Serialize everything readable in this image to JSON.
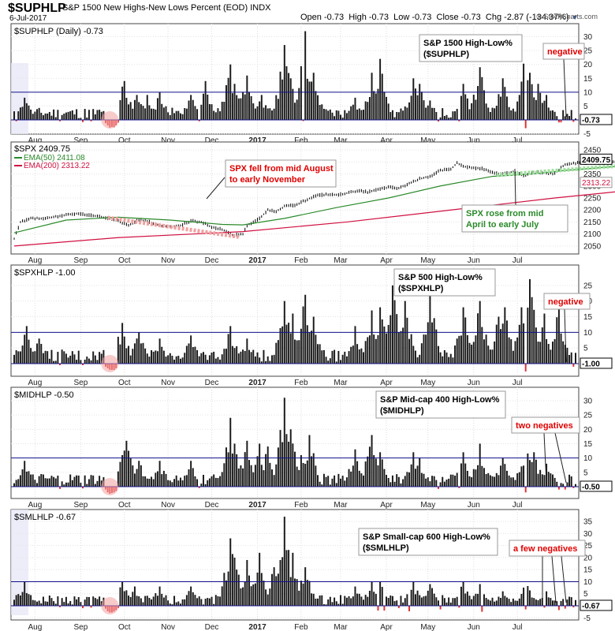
{
  "header": {
    "symbol": "$SUPHLP",
    "description": "S&P 1500 New Highs-New Lows Percent (EOD)",
    "exchange": "INDX",
    "date": "6-Jul-2017",
    "open_label": "Open",
    "open": "-0.73",
    "high_label": "High",
    "high": "-0.73",
    "low_label": "Low",
    "low": "-0.73",
    "close_label": "Close",
    "close": "-0.73",
    "chg_label": "Chg",
    "chg": "-2.87 (-134.37%)",
    "credit": "© StockCharts.com"
  },
  "colors": {
    "bar": "#1a1a1a",
    "neg": "#e03030",
    "ref": "#10108a",
    "ema50": "#2a8a2a",
    "ema200": "#d01040",
    "price": "#000000",
    "redNote": "#e00000",
    "greenNote": "#2a8a2a"
  },
  "chart_data": [
    {
      "type": "bar",
      "id": "suphlp",
      "legend": "$SUPHLP (Daily) -0.73",
      "yticks": [
        -5,
        0,
        5,
        10,
        15,
        20,
        25,
        30
      ],
      "ylim": [
        -6,
        33
      ],
      "ref_line": 10,
      "last_value": "-0.73",
      "x_labels": [
        "Aug",
        "Sep",
        "Oct",
        "Nov",
        "Dec",
        "2017",
        "Feb",
        "Mar",
        "Apr",
        "May",
        "Jun",
        "Jul"
      ],
      "spikes": [
        [
          5,
          8
        ],
        [
          52,
          12
        ],
        [
          53,
          14
        ],
        [
          59,
          9
        ],
        [
          64,
          9
        ],
        [
          70,
          10
        ],
        [
          85,
          9
        ],
        [
          92,
          14
        ],
        [
          104,
          20
        ],
        [
          106,
          13
        ],
        [
          112,
          16
        ],
        [
          119,
          9
        ],
        [
          130,
          27
        ],
        [
          133,
          15
        ],
        [
          140,
          32
        ],
        [
          144,
          17
        ],
        [
          164,
          8
        ],
        [
          172,
          17
        ],
        [
          176,
          22
        ],
        [
          192,
          15
        ],
        [
          195,
          13
        ],
        [
          200,
          7
        ],
        [
          216,
          13
        ],
        [
          224,
          19
        ],
        [
          235,
          15
        ],
        [
          246,
          26
        ],
        [
          248,
          17
        ],
        [
          252,
          13
        ],
        [
          256,
          9
        ]
      ],
      "neg_bars": [
        [
          1,
          -0.5
        ],
        [
          22,
          -0.5
        ],
        [
          33,
          -0.8
        ],
        [
          37,
          -0.5
        ],
        [
          44,
          -1.2
        ],
        [
          45,
          -2
        ],
        [
          46,
          -2.8
        ],
        [
          47,
          -2.5
        ],
        [
          48,
          -2.7
        ],
        [
          49,
          -2
        ],
        [
          50,
          -1
        ],
        [
          89,
          -0.5
        ],
        [
          139,
          -0.4
        ],
        [
          204,
          -0.6
        ],
        [
          214,
          -0.5
        ],
        [
          246,
          -3
        ],
        [
          262,
          -0.9
        ],
        [
          263,
          -0.9
        ],
        [
          269,
          -0.73
        ]
      ],
      "annotations": [
        {
          "text": "S&P 1500 High-Low%",
          "text2": "($SUPHLP)",
          "color": "#000000"
        },
        {
          "text": "negative",
          "color": "#e00000"
        }
      ]
    },
    {
      "type": "line",
      "id": "spx",
      "legend": "$SPX 2409.75",
      "ema50_label": "EMA(50) 2411.08",
      "ema200_label": "EMA(200) 2313.22",
      "yticks": [
        2050,
        2100,
        2150,
        2200,
        2250,
        2300,
        2350,
        2400,
        2450
      ],
      "ylim": [
        2030,
        2470
      ],
      "last_value": "2409.75",
      "ema200_value": "2313.22",
      "x_labels": [
        "Aug",
        "Sep",
        "Oct",
        "Nov",
        "Dec",
        "2017",
        "Feb",
        "Mar",
        "Apr",
        "May",
        "Jun",
        "Jul"
      ],
      "price_points": [
        [
          0,
          2080
        ],
        [
          3,
          2150
        ],
        [
          8,
          2165
        ],
        [
          15,
          2165
        ],
        [
          22,
          2175
        ],
        [
          30,
          2185
        ],
        [
          38,
          2178
        ],
        [
          45,
          2165
        ],
        [
          50,
          2155
        ],
        [
          55,
          2135
        ],
        [
          60,
          2160
        ],
        [
          65,
          2150
        ],
        [
          70,
          2135
        ],
        [
          75,
          2130
        ],
        [
          80,
          2135
        ],
        [
          85,
          2155
        ],
        [
          90,
          2150
        ],
        [
          95,
          2128
        ],
        [
          100,
          2120
        ],
        [
          105,
          2095
        ],
        [
          110,
          2100
        ],
        [
          112,
          2135
        ],
        [
          118,
          2165
        ],
        [
          122,
          2200
        ],
        [
          126,
          2195
        ],
        [
          130,
          2215
        ],
        [
          135,
          2220
        ],
        [
          140,
          2240
        ],
        [
          145,
          2260
        ],
        [
          150,
          2265
        ],
        [
          155,
          2262
        ],
        [
          160,
          2270
        ],
        [
          165,
          2280
        ],
        [
          170,
          2275
        ],
        [
          175,
          2285
        ],
        [
          180,
          2295
        ],
        [
          185,
          2290
        ],
        [
          190,
          2310
        ],
        [
          195,
          2330
        ],
        [
          200,
          2340
        ],
        [
          205,
          2365
        ],
        [
          210,
          2370
        ],
        [
          213,
          2395
        ],
        [
          216,
          2382
        ],
        [
          220,
          2375
        ],
        [
          225,
          2372
        ],
        [
          230,
          2355
        ],
        [
          235,
          2350
        ],
        [
          240,
          2360
        ],
        [
          245,
          2345
        ],
        [
          250,
          2358
        ],
        [
          255,
          2355
        ],
        [
          260,
          2352
        ],
        [
          265,
          2390
        ],
        [
          270,
          2395
        ],
        [
          275,
          2398
        ],
        [
          280,
          2400
        ],
        [
          285,
          2395
        ],
        [
          290,
          2400
        ],
        [
          295,
          2410
        ],
        [
          300,
          2425
        ],
        [
          305,
          2430
        ],
        [
          310,
          2440
        ],
        [
          315,
          2435
        ],
        [
          320,
          2440
        ],
        [
          324,
          2445
        ],
        [
          328,
          2430
        ],
        [
          332,
          2430
        ],
        [
          335,
          2428
        ]
      ],
      "ema50_points": [
        [
          0,
          2105
        ],
        [
          25,
          2158
        ],
        [
          50,
          2170
        ],
        [
          75,
          2158
        ],
        [
          100,
          2140
        ],
        [
          110,
          2138
        ],
        [
          130,
          2165
        ],
        [
          155,
          2210
        ],
        [
          180,
          2250
        ],
        [
          205,
          2300
        ],
        [
          230,
          2340
        ],
        [
          250,
          2350
        ],
        [
          265,
          2365
        ],
        [
          285,
          2378
        ],
        [
          305,
          2395
        ],
        [
          325,
          2411
        ],
        [
          335,
          2411
        ]
      ],
      "ema200_points": [
        [
          0,
          2050
        ],
        [
          50,
          2085
        ],
        [
          110,
          2110
        ],
        [
          160,
          2150
        ],
        [
          210,
          2200
        ],
        [
          260,
          2250
        ],
        [
          300,
          2285
        ],
        [
          335,
          2313
        ]
      ],
      "annotations": [
        {
          "text": "SPX fell from mid August",
          "text2": "to early November",
          "color": "#e00000"
        },
        {
          "text": "SPX rose from mid",
          "text2": "April to early July",
          "color": "#2a8a2a"
        }
      ]
    },
    {
      "type": "bar",
      "id": "spxhlp",
      "legend": "$SPXHLP -1.00",
      "yticks": [
        -5,
        0,
        5,
        10,
        15,
        20,
        25
      ],
      "ylim": [
        -6,
        30
      ],
      "ref_line": 10,
      "last_value": "-1.00",
      "x_labels": [
        "Aug",
        "Sep",
        "Oct",
        "Nov",
        "Dec",
        "2017",
        "Feb",
        "Mar",
        "Apr",
        "May",
        "Jun",
        "Jul"
      ],
      "spikes": [
        [
          6,
          12
        ],
        [
          12,
          8
        ],
        [
          45,
          9
        ],
        [
          52,
          13
        ],
        [
          60,
          10
        ],
        [
          70,
          8
        ],
        [
          85,
          9
        ],
        [
          104,
          12
        ],
        [
          112,
          8
        ],
        [
          130,
          20
        ],
        [
          134,
          16
        ],
        [
          140,
          22
        ],
        [
          144,
          15
        ],
        [
          164,
          12
        ],
        [
          172,
          17
        ],
        [
          176,
          18
        ],
        [
          182,
          25
        ],
        [
          188,
          20
        ],
        [
          200,
          22
        ],
        [
          216,
          18
        ],
        [
          224,
          20
        ],
        [
          233,
          15
        ],
        [
          236,
          18
        ],
        [
          244,
          18
        ],
        [
          248,
          27
        ],
        [
          255,
          16
        ],
        [
          262,
          18
        ]
      ],
      "neg_bars": [
        [
          44,
          -1
        ],
        [
          45,
          -1.5
        ],
        [
          46,
          -2
        ],
        [
          47,
          -2
        ],
        [
          48,
          -2
        ],
        [
          49,
          -1.5
        ],
        [
          22,
          -0.5
        ],
        [
          33,
          -0.5
        ],
        [
          246,
          -2.5
        ],
        [
          269,
          -1
        ]
      ],
      "annotations": [
        {
          "text": "S&P 500 High-Low%",
          "text2": "($SPXHLP)",
          "color": "#000000"
        },
        {
          "text": "negative",
          "color": "#e00000"
        }
      ]
    },
    {
      "type": "bar",
      "id": "midhlp",
      "legend": "$MIDHLP -0.50",
      "yticks": [
        -5,
        0,
        5,
        10,
        15,
        20,
        25,
        30
      ],
      "ylim": [
        -6,
        33
      ],
      "ref_line": 10,
      "last_value": "-0.50",
      "x_labels": [
        "Aug",
        "Sep",
        "Oct",
        "Nov",
        "Dec",
        "2017",
        "Feb",
        "Mar",
        "Apr",
        "May",
        "Jun",
        "Jul"
      ],
      "spikes": [
        [
          5,
          9
        ],
        [
          52,
          11
        ],
        [
          54,
          16
        ],
        [
          60,
          9
        ],
        [
          70,
          9
        ],
        [
          85,
          9
        ],
        [
          104,
          24
        ],
        [
          106,
          15
        ],
        [
          112,
          16
        ],
        [
          118,
          15
        ],
        [
          122,
          14
        ],
        [
          130,
          31
        ],
        [
          133,
          20
        ],
        [
          138,
          11
        ],
        [
          142,
          18
        ],
        [
          164,
          13
        ],
        [
          172,
          18
        ],
        [
          176,
          12
        ],
        [
          192,
          12
        ],
        [
          195,
          10
        ],
        [
          216,
          12
        ],
        [
          224,
          15
        ],
        [
          235,
          10
        ],
        [
          246,
          14
        ],
        [
          250,
          12
        ],
        [
          256,
          8
        ]
      ],
      "neg_bars": [
        [
          22,
          -0.8
        ],
        [
          33,
          -0.6
        ],
        [
          44,
          -1
        ],
        [
          45,
          -2
        ],
        [
          46,
          -2.5
        ],
        [
          47,
          -2.2
        ],
        [
          48,
          -2
        ],
        [
          49,
          -1.5
        ],
        [
          89,
          -0.5
        ],
        [
          204,
          -0.8
        ],
        [
          214,
          -0.5
        ],
        [
          246,
          -2
        ],
        [
          262,
          -1
        ],
        [
          265,
          -1
        ],
        [
          269,
          -0.5
        ]
      ],
      "annotations": [
        {
          "text": "S&P Mid-cap 400 High-Low%",
          "text2": "($MIDHLP)",
          "color": "#000000"
        },
        {
          "text": "two negatives",
          "color": "#e00000"
        }
      ]
    },
    {
      "type": "bar",
      "id": "smlhlp",
      "legend": "$SMLHLP -0.67",
      "yticks": [
        -5,
        0,
        5,
        10,
        15,
        20,
        25,
        30,
        35
      ],
      "ylim": [
        -6,
        38
      ],
      "ref_line": 10,
      "last_value": "-0.67",
      "x_labels": [
        "Aug",
        "Sep",
        "Oct",
        "Nov",
        "Dec",
        "2017",
        "Feb",
        "Mar",
        "Apr",
        "May",
        "Jun",
        "Jul"
      ],
      "spikes": [
        [
          5,
          10
        ],
        [
          52,
          10
        ],
        [
          58,
          8
        ],
        [
          70,
          8
        ],
        [
          85,
          8
        ],
        [
          104,
          28
        ],
        [
          106,
          20
        ],
        [
          112,
          19
        ],
        [
          118,
          22
        ],
        [
          125,
          16
        ],
        [
          128,
          19
        ],
        [
          130,
          37
        ],
        [
          134,
          22
        ],
        [
          140,
          16
        ],
        [
          164,
          8
        ],
        [
          172,
          10
        ],
        [
          176,
          10
        ],
        [
          192,
          10
        ],
        [
          200,
          9
        ],
        [
          216,
          10
        ],
        [
          224,
          9
        ],
        [
          235,
          6
        ],
        [
          246,
          10
        ],
        [
          256,
          6
        ]
      ],
      "neg_bars": [
        [
          22,
          -0.6
        ],
        [
          33,
          -1
        ],
        [
          37,
          -0.8
        ],
        [
          44,
          -1.2
        ],
        [
          45,
          -2.3
        ],
        [
          46,
          -2.8
        ],
        [
          47,
          -2.8
        ],
        [
          48,
          -2.4
        ],
        [
          49,
          -1.8
        ],
        [
          50,
          -1
        ],
        [
          175,
          -2
        ],
        [
          178,
          -2
        ],
        [
          185,
          -1
        ],
        [
          190,
          -2.3
        ],
        [
          205,
          -1.5
        ],
        [
          214,
          -0.8
        ],
        [
          225,
          -2.5
        ],
        [
          246,
          -1.5
        ],
        [
          255,
          -0.8
        ],
        [
          262,
          -1.8
        ],
        [
          265,
          -1.2
        ],
        [
          269,
          -0.67
        ]
      ],
      "annotations": [
        {
          "text": "S&P Small-cap 600 High-Low%",
          "text2": "($SMLHLP)",
          "color": "#000000"
        },
        {
          "text": "a few negatives",
          "color": "#e00000"
        }
      ]
    }
  ]
}
